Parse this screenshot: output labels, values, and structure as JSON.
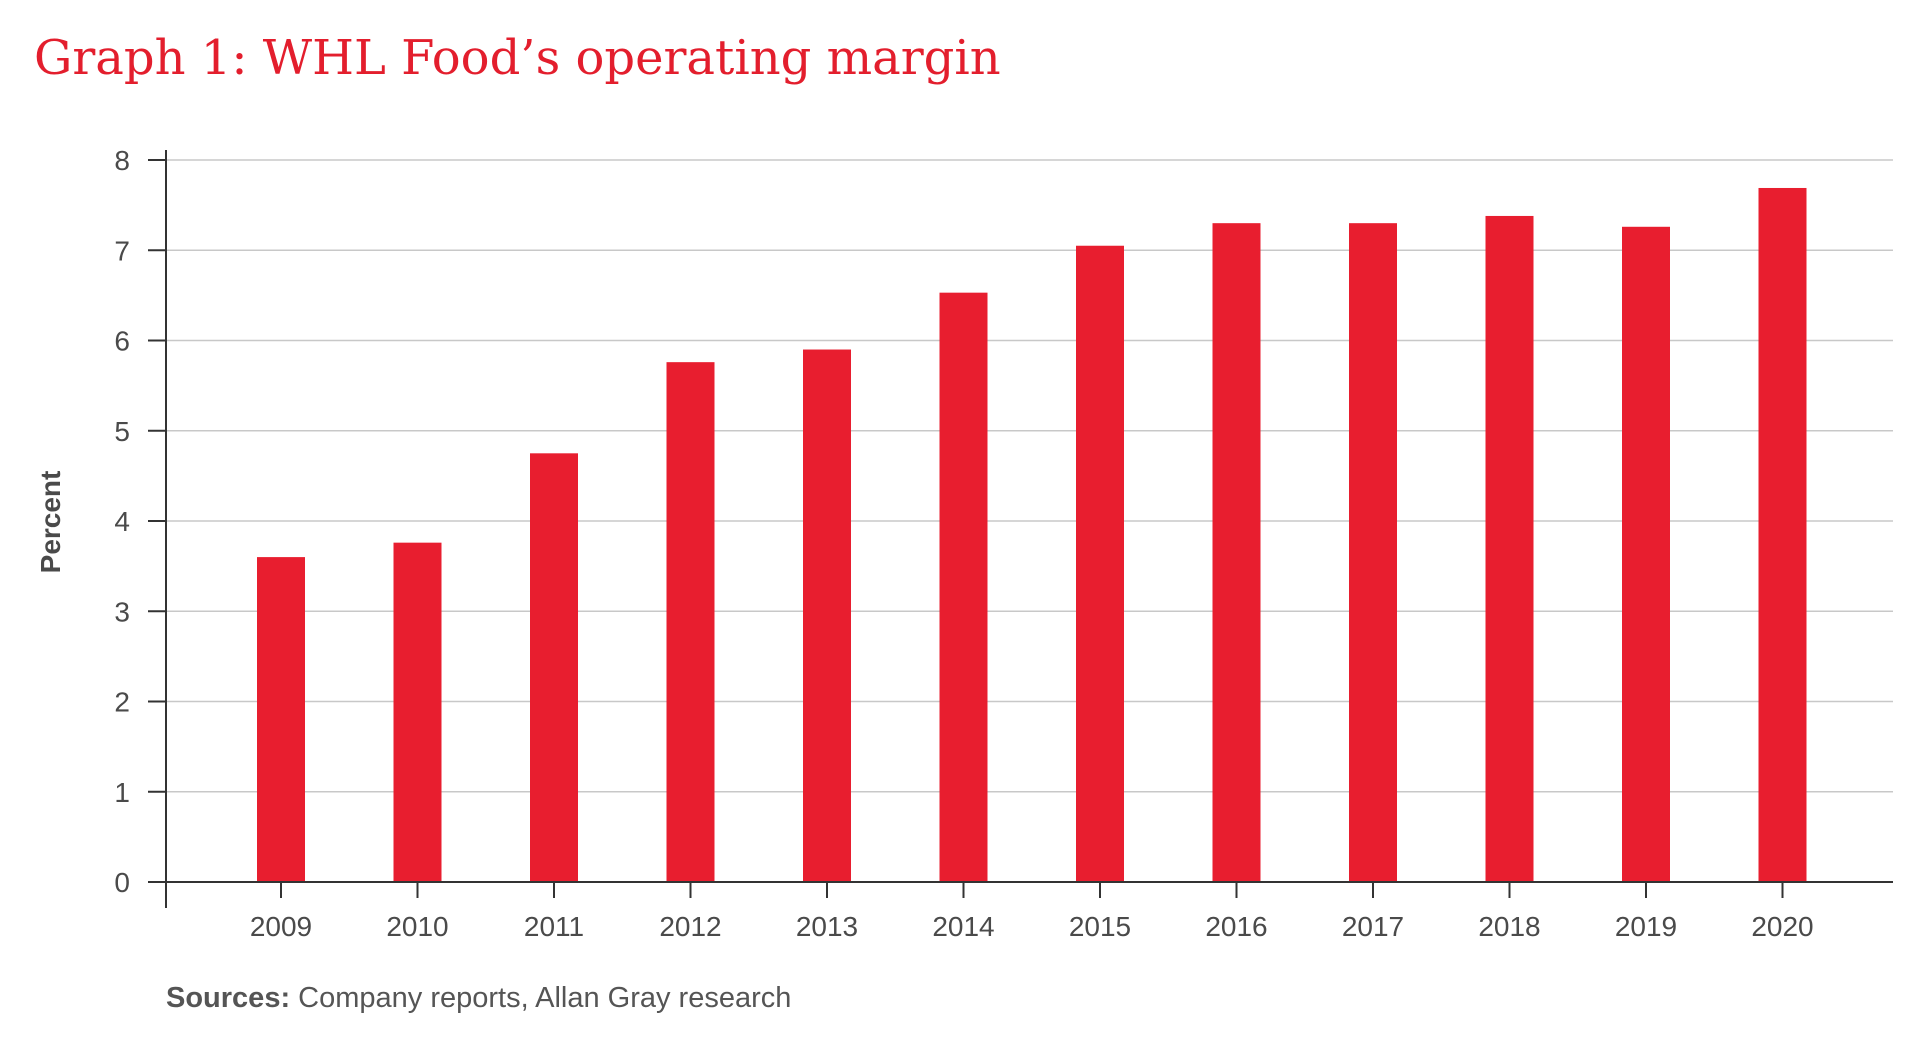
{
  "title": "Graph 1: WHL Food’s operating margin",
  "sources": {
    "label": "Sources:",
    "text": " Company reports, Allan Gray research"
  },
  "colors": {
    "bar": "#e81e2f",
    "title": "#e31e2d",
    "grid": "#c8c8c8",
    "axis": "#333333",
    "text": "#4a4a4a"
  },
  "chart_data": {
    "type": "bar",
    "title": "Graph 1: WHL Food’s operating margin",
    "xlabel": "",
    "ylabel": "Percent",
    "categories": [
      "2009",
      "2010",
      "2011",
      "2012",
      "2013",
      "2014",
      "2015",
      "2016",
      "2017",
      "2018",
      "2019",
      "2020"
    ],
    "values": [
      3.6,
      3.76,
      4.75,
      5.76,
      5.9,
      6.53,
      7.05,
      7.3,
      7.3,
      7.38,
      7.26,
      7.69
    ],
    "ylim": [
      0,
      8
    ],
    "yticks": [
      0,
      1,
      2,
      3,
      4,
      5,
      6,
      7,
      8
    ],
    "grid": true,
    "legend": "none"
  }
}
